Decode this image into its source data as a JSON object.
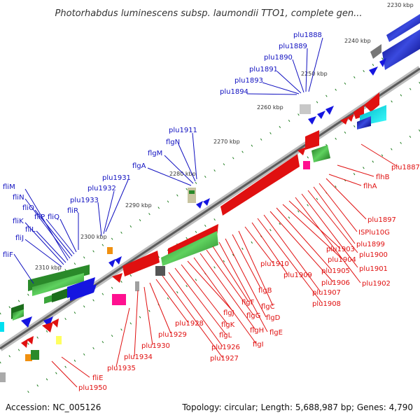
{
  "title": "Photorhabdus luminescens subsp. laumondii TTO1, complete gen...",
  "footer": {
    "accession": "Accession: NC_005126",
    "summary": "Topology: circular; Length: 5,688,987 bp; Genes: 4,790"
  },
  "ticks": [
    "2230 kbp",
    "2240 kbp",
    "2250 kbp",
    "2260 kbp",
    "2270 kbp",
    "2280 kbp",
    "2290 kbp",
    "2300 kbp",
    "2310 kbp"
  ],
  "genes_outer": [
    "plu1888",
    "plu1889",
    "plu1890",
    "plu1891",
    "plu1893",
    "plu1894",
    "flgN",
    "plu1911",
    "flgM",
    "flgA",
    "plu1931",
    "plu1932",
    "plu1933",
    "fliR",
    "fliQ",
    "fliP",
    "fliO",
    "fliN",
    "fliM",
    "fliL",
    "fliK",
    "fliJ",
    "fliF"
  ],
  "genes_inner": [
    "plu1887",
    "flhB",
    "flhA",
    "plu1897",
    "ISPlu10G",
    "plu1899",
    "plu1900",
    "plu1901",
    "plu1902",
    "plu1903",
    "plu1904",
    "plu1905",
    "plu1906",
    "plu1907",
    "plu1908",
    "plu1909",
    "plu1910",
    "flgB",
    "flgC",
    "flgD",
    "flgE",
    "flgF",
    "flgG",
    "flgH",
    "flgI",
    "flgJ",
    "flgK",
    "flgL",
    "plu1926",
    "plu1927",
    "plu1928",
    "plu1929",
    "plu1930",
    "plu1934",
    "plu1935",
    "fliE",
    "plu1950"
  ],
  "colors": {
    "outer_label": "#1010c0",
    "inner_label": "#e01010",
    "tick": "#1a7a1a",
    "backbone": "#808080"
  }
}
